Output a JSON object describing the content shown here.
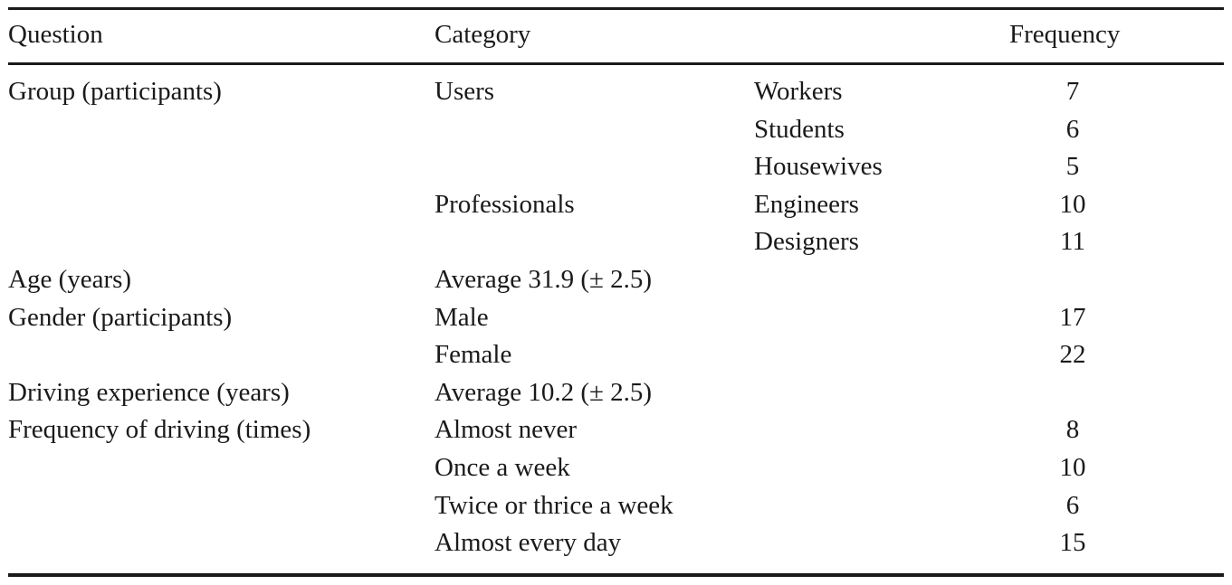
{
  "table": {
    "headers": {
      "question": "Question",
      "category": "Category",
      "frequency": "Frequency"
    },
    "rows": [
      {
        "question": "Group (participants)",
        "category": "Users",
        "subcategory": "Workers",
        "frequency": "7"
      },
      {
        "question": "",
        "category": "",
        "subcategory": "Students",
        "frequency": "6"
      },
      {
        "question": "",
        "category": "",
        "subcategory": "Housewives",
        "frequency": "5"
      },
      {
        "question": "",
        "category": "Professionals",
        "subcategory": "Engineers",
        "frequency": "10"
      },
      {
        "question": "",
        "category": "",
        "subcategory": "Designers",
        "frequency": "11"
      },
      {
        "question": "Age (years)",
        "category": "Average 31.9 (± 2.5)",
        "subcategory": "",
        "frequency": ""
      },
      {
        "question": "Gender (participants)",
        "category": "Male",
        "subcategory": "",
        "frequency": "17"
      },
      {
        "question": "",
        "category": "Female",
        "subcategory": "",
        "frequency": "22"
      },
      {
        "question": "Driving experience (years)",
        "category": "Average 10.2 (± 2.5)",
        "subcategory": "",
        "frequency": ""
      },
      {
        "question": "Frequency of driving (times)",
        "category": "Almost never",
        "subcategory": "",
        "frequency": "8"
      },
      {
        "question": "",
        "category": "Once a week",
        "subcategory": "",
        "frequency": "10"
      },
      {
        "question": "",
        "category": "Twice or thrice a week",
        "subcategory": "",
        "frequency": "6"
      },
      {
        "question": "",
        "category": "Almost every day",
        "subcategory": "",
        "frequency": "15"
      }
    ]
  }
}
